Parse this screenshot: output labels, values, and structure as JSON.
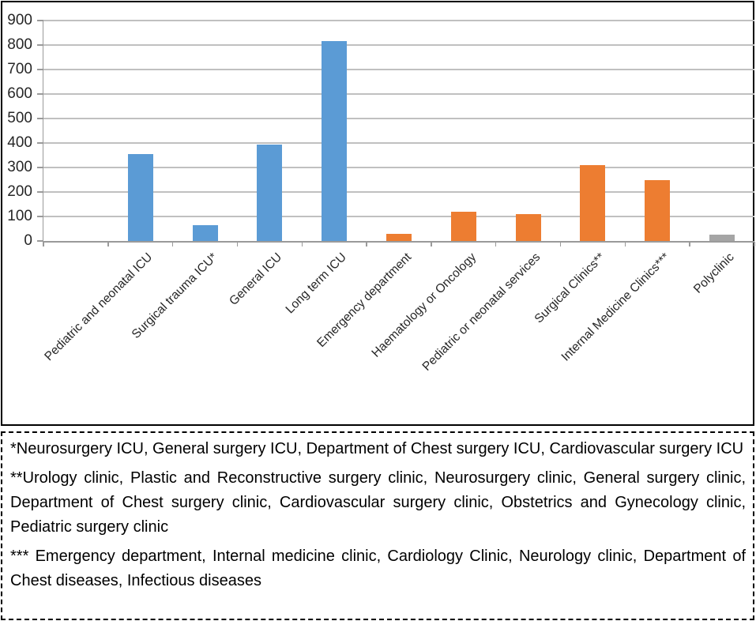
{
  "chart_data": {
    "type": "bar",
    "title": "",
    "xlabel": "",
    "ylabel": "",
    "categories": [
      "Pediatric and neonatal ICU",
      "Surgical trauma ICU*",
      "General ICU",
      "Long term ICU",
      "Emergency department",
      "Haematology or Oncology",
      "Pediatric or neonatal services",
      "Surgical Clinics**",
      "Internal Medicine Clinics***",
      "Polyclinic"
    ],
    "values": [
      355,
      65,
      395,
      815,
      30,
      120,
      110,
      310,
      250,
      25
    ],
    "bar_colors": [
      "#5B9BD5",
      "#5B9BD5",
      "#5B9BD5",
      "#5B9BD5",
      "#ED7D31",
      "#ED7D31",
      "#ED7D31",
      "#ED7D31",
      "#ED7D31",
      "#A5A5A5"
    ],
    "ylim": [
      0,
      900
    ],
    "ytick_interval": 100,
    "ytick_labels": [
      "0",
      "100",
      "200",
      "300",
      "400",
      "500",
      "600",
      "700",
      "800",
      "900"
    ],
    "grid": true,
    "legend_position": "none",
    "leading_empty_slots": 1,
    "label_rotation_deg": 45
  },
  "colors": {
    "icu_blue": "#5B9BD5",
    "services_orange": "#ED7D31",
    "polyclinic_gray": "#A5A5A5",
    "gridline": "#C0C0C0",
    "axis": "#9A9A9A",
    "chart_border": "#000000",
    "footnote_border": "#000000"
  },
  "footnotes": [
    "*Neurosurgery ICU, General surgery ICU, Department of Chest surgery ICU, Cardiovascular surgery ICU",
    "**Urology clinic, Plastic and Reconstructive surgery clinic, Neurosurgery clinic, General surgery clinic, Department of Chest surgery clinic, Cardiovascular surgery clinic, Obstetrics  and Gynecology clinic, Pediatric surgery clinic",
    "*** Emergency department, Internal medicine clinic, Cardiology Clinic, Neurology clinic, Department of Chest diseases, Infectious diseases"
  ]
}
